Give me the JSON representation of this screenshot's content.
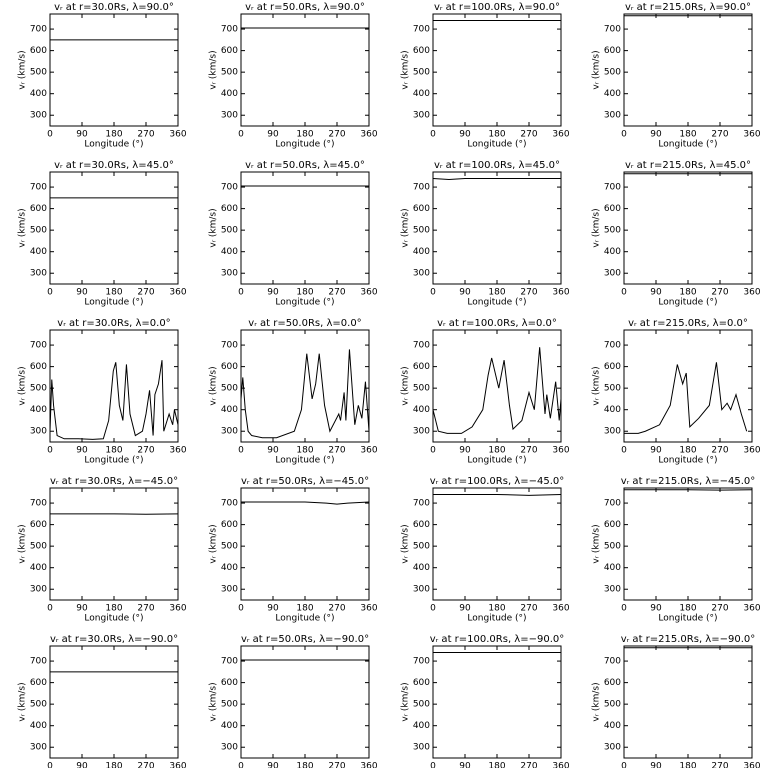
{
  "chart_data": [
    {
      "type": "line",
      "title": "vᵣ at r=30.0Rs, λ=90.0°",
      "xlabel": "Longitude (°)",
      "ylabel": "vᵣ (km/s)",
      "x": [
        0,
        90,
        180,
        270,
        360
      ],
      "values": [
        650,
        650,
        650,
        650,
        650
      ],
      "color": "#000000",
      "xlim": [
        0,
        360
      ],
      "ylim": [
        250,
        770
      ],
      "xticks": [
        0,
        90,
        180,
        270,
        360
      ],
      "yticks": [
        300,
        400,
        500,
        600,
        700
      ]
    },
    {
      "type": "line",
      "title": "vᵣ at r=50.0Rs, λ=90.0°",
      "xlabel": "Longitude (°)",
      "ylabel": "vᵣ (km/s)",
      "x": [
        0,
        90,
        180,
        270,
        360
      ],
      "values": [
        705,
        705,
        705,
        705,
        705
      ],
      "color": "#000000",
      "xlim": [
        0,
        360
      ],
      "ylim": [
        250,
        770
      ],
      "xticks": [
        0,
        90,
        180,
        270,
        360
      ],
      "yticks": [
        300,
        400,
        500,
        600,
        700
      ]
    },
    {
      "type": "line",
      "title": "vᵣ at r=100.0Rs, λ=90.0°",
      "xlabel": "Longitude (°)",
      "ylabel": "vᵣ (km/s)",
      "x": [
        0,
        90,
        180,
        270,
        360
      ],
      "values": [
        740,
        740,
        740,
        740,
        740
      ],
      "color": "#000000",
      "xlim": [
        0,
        360
      ],
      "ylim": [
        250,
        770
      ],
      "xticks": [
        0,
        90,
        180,
        270,
        360
      ],
      "yticks": [
        300,
        400,
        500,
        600,
        700
      ]
    },
    {
      "type": "line",
      "title": "vᵣ at r=215.0Rs, λ=90.0°",
      "xlabel": "Longitude (°)",
      "ylabel": "vᵣ (km/s)",
      "x": [
        0,
        90,
        180,
        270,
        360
      ],
      "values": [
        762,
        762,
        762,
        762,
        762
      ],
      "color": "#000000",
      "xlim": [
        0,
        360
      ],
      "ylim": [
        250,
        770
      ],
      "xticks": [
        0,
        90,
        180,
        270,
        360
      ],
      "yticks": [
        300,
        400,
        500,
        600,
        700
      ]
    },
    {
      "type": "line",
      "title": "vᵣ at r=30.0Rs, λ=45.0°",
      "xlabel": "Longitude (°)",
      "ylabel": "vᵣ (km/s)",
      "x": [
        0,
        90,
        180,
        270,
        360
      ],
      "values": [
        650,
        650,
        650,
        650,
        650
      ],
      "color": "#000000",
      "xlim": [
        0,
        360
      ],
      "ylim": [
        250,
        770
      ],
      "xticks": [
        0,
        90,
        180,
        270,
        360
      ],
      "yticks": [
        300,
        400,
        500,
        600,
        700
      ]
    },
    {
      "type": "line",
      "title": "vᵣ at r=50.0Rs, λ=45.0°",
      "xlabel": "Longitude (°)",
      "ylabel": "vᵣ (km/s)",
      "x": [
        0,
        90,
        180,
        270,
        360
      ],
      "values": [
        705,
        705,
        705,
        705,
        705
      ],
      "color": "#000000",
      "xlim": [
        0,
        360
      ],
      "ylim": [
        250,
        770
      ],
      "xticks": [
        0,
        90,
        180,
        270,
        360
      ],
      "yticks": [
        300,
        400,
        500,
        600,
        700
      ]
    },
    {
      "type": "line",
      "title": "vᵣ at r=100.0Rs, λ=45.0°",
      "xlabel": "Longitude (°)",
      "ylabel": "vᵣ (km/s)",
      "x": [
        0,
        45,
        90,
        180,
        270,
        360
      ],
      "values": [
        740,
        735,
        740,
        740,
        740,
        740
      ],
      "color": "#000000",
      "xlim": [
        0,
        360
      ],
      "ylim": [
        250,
        770
      ],
      "xticks": [
        0,
        90,
        180,
        270,
        360
      ],
      "yticks": [
        300,
        400,
        500,
        600,
        700
      ]
    },
    {
      "type": "line",
      "title": "vᵣ at r=215.0Rs, λ=45.0°",
      "xlabel": "Longitude (°)",
      "ylabel": "vᵣ (km/s)",
      "x": [
        0,
        90,
        180,
        270,
        360
      ],
      "values": [
        762,
        762,
        762,
        762,
        762
      ],
      "color": "#000000",
      "xlim": [
        0,
        360
      ],
      "ylim": [
        250,
        770
      ],
      "xticks": [
        0,
        90,
        180,
        270,
        360
      ],
      "yticks": [
        300,
        400,
        500,
        600,
        700
      ]
    },
    {
      "type": "line",
      "title": "vᵣ at r=30.0Rs, λ=0.0°",
      "xlabel": "Longitude (°)",
      "ylabel": "vᵣ (km/s)",
      "x": [
        0,
        5,
        10,
        20,
        40,
        80,
        120,
        150,
        165,
        178,
        185,
        195,
        205,
        215,
        225,
        240,
        260,
        270,
        280,
        290,
        295,
        305,
        315,
        320,
        335,
        345,
        350,
        360
      ],
      "values": [
        300,
        540,
        420,
        280,
        265,
        265,
        262,
        265,
        350,
        580,
        620,
        420,
        350,
        610,
        380,
        280,
        300,
        380,
        490,
        280,
        470,
        520,
        630,
        300,
        380,
        330,
        400,
        330
      ],
      "color": "#000000",
      "xlim": [
        0,
        360
      ],
      "ylim": [
        250,
        770
      ],
      "xticks": [
        0,
        90,
        180,
        270,
        360
      ],
      "yticks": [
        300,
        400,
        500,
        600,
        700
      ]
    },
    {
      "type": "line",
      "title": "vᵣ at r=50.0Rs, λ=0.0°",
      "xlabel": "Longitude (°)",
      "ylabel": "vᵣ (km/s)",
      "x": [
        0,
        5,
        12,
        20,
        30,
        60,
        100,
        150,
        170,
        185,
        200,
        210,
        220,
        235,
        250,
        275,
        280,
        290,
        295,
        305,
        320,
        330,
        340,
        350,
        360
      ],
      "values": [
        450,
        550,
        400,
        300,
        280,
        270,
        270,
        300,
        400,
        660,
        450,
        520,
        660,
        420,
        300,
        380,
        350,
        480,
        350,
        680,
        330,
        420,
        360,
        530,
        300
      ],
      "color": "#000000",
      "xlim": [
        0,
        360
      ],
      "ylim": [
        250,
        770
      ],
      "xticks": [
        0,
        90,
        180,
        270,
        360
      ],
      "yticks": [
        300,
        400,
        500,
        600,
        700
      ]
    },
    {
      "type": "line",
      "title": "vᵣ at r=100.0Rs, λ=0.0°",
      "xlabel": "Longitude (°)",
      "ylabel": "vᵣ (km/s)",
      "x": [
        0,
        15,
        40,
        80,
        110,
        140,
        155,
        165,
        185,
        200,
        215,
        225,
        250,
        270,
        285,
        300,
        315,
        320,
        330,
        345,
        355,
        360
      ],
      "values": [
        400,
        300,
        290,
        290,
        320,
        400,
        560,
        640,
        500,
        630,
        420,
        310,
        350,
        480,
        400,
        690,
        380,
        470,
        360,
        530,
        350,
        450
      ],
      "color": "#000000",
      "xlim": [
        0,
        360
      ],
      "ylim": [
        250,
        770
      ],
      "xticks": [
        0,
        90,
        180,
        270,
        360
      ],
      "yticks": [
        300,
        400,
        500,
        600,
        700
      ]
    },
    {
      "type": "line",
      "title": "vᵣ at r=215.0Rs, λ=0.0°",
      "xlabel": "Longitude (°)",
      "ylabel": "vᵣ (km/s)",
      "x": [
        0,
        40,
        60,
        100,
        130,
        150,
        165,
        175,
        185,
        210,
        240,
        260,
        275,
        290,
        300,
        315,
        330,
        345
      ],
      "values": [
        290,
        290,
        300,
        330,
        420,
        610,
        520,
        570,
        320,
        360,
        420,
        620,
        400,
        430,
        400,
        470,
        380,
        300
      ],
      "color": "#000000",
      "xlim": [
        0,
        360
      ],
      "ylim": [
        250,
        770
      ],
      "xticks": [
        0,
        90,
        180,
        270,
        360
      ],
      "yticks": [
        300,
        400,
        500,
        600,
        700
      ]
    },
    {
      "type": "line",
      "title": "vᵣ at r=30.0Rs, λ=−45.0°",
      "xlabel": "Longitude (°)",
      "ylabel": "vᵣ (km/s)",
      "x": [
        0,
        90,
        180,
        270,
        360
      ],
      "values": [
        650,
        650,
        650,
        648,
        650
      ],
      "color": "#000000",
      "xlim": [
        0,
        360
      ],
      "ylim": [
        250,
        770
      ],
      "xticks": [
        0,
        90,
        180,
        270,
        360
      ],
      "yticks": [
        300,
        400,
        500,
        600,
        700
      ]
    },
    {
      "type": "line",
      "title": "vᵣ at r=50.0Rs, λ=−45.0°",
      "xlabel": "Longitude (°)",
      "ylabel": "vᵣ (km/s)",
      "x": [
        0,
        90,
        180,
        240,
        270,
        300,
        360
      ],
      "values": [
        705,
        705,
        705,
        700,
        695,
        700,
        705
      ],
      "color": "#000000",
      "xlim": [
        0,
        360
      ],
      "ylim": [
        250,
        770
      ],
      "xticks": [
        0,
        90,
        180,
        270,
        360
      ],
      "yticks": [
        300,
        400,
        500,
        600,
        700
      ]
    },
    {
      "type": "line",
      "title": "vᵣ at r=100.0Rs, λ=−45.0°",
      "xlabel": "Longitude (°)",
      "ylabel": "vᵣ (km/s)",
      "x": [
        0,
        90,
        180,
        270,
        360
      ],
      "values": [
        740,
        740,
        740,
        736,
        740
      ],
      "color": "#000000",
      "xlim": [
        0,
        360
      ],
      "ylim": [
        250,
        770
      ],
      "xticks": [
        0,
        90,
        180,
        270,
        360
      ],
      "yticks": [
        300,
        400,
        500,
        600,
        700
      ]
    },
    {
      "type": "line",
      "title": "vᵣ at r=215.0Rs, λ=−45.0°",
      "xlabel": "Longitude (°)",
      "ylabel": "vᵣ (km/s)",
      "x": [
        0,
        90,
        180,
        270,
        360
      ],
      "values": [
        762,
        762,
        762,
        760,
        762
      ],
      "color": "#000000",
      "xlim": [
        0,
        360
      ],
      "ylim": [
        250,
        770
      ],
      "xticks": [
        0,
        90,
        180,
        270,
        360
      ],
      "yticks": [
        300,
        400,
        500,
        600,
        700
      ]
    },
    {
      "type": "line",
      "title": "vᵣ at r=30.0Rs, λ=−90.0°",
      "xlabel": "Longitude (°)",
      "ylabel": "vᵣ (km/s)",
      "x": [
        0,
        90,
        180,
        270,
        360
      ],
      "values": [
        650,
        650,
        650,
        650,
        650
      ],
      "color": "#000000",
      "xlim": [
        0,
        360
      ],
      "ylim": [
        250,
        770
      ],
      "xticks": [
        0,
        90,
        180,
        270,
        360
      ],
      "yticks": [
        300,
        400,
        500,
        600,
        700
      ]
    },
    {
      "type": "line",
      "title": "vᵣ at r=50.0Rs, λ=−90.0°",
      "xlabel": "Longitude (°)",
      "ylabel": "vᵣ (km/s)",
      "x": [
        0,
        90,
        180,
        270,
        360
      ],
      "values": [
        705,
        705,
        705,
        705,
        705
      ],
      "color": "#000000",
      "xlim": [
        0,
        360
      ],
      "ylim": [
        250,
        770
      ],
      "xticks": [
        0,
        90,
        180,
        270,
        360
      ],
      "yticks": [
        300,
        400,
        500,
        600,
        700
      ]
    },
    {
      "type": "line",
      "title": "vᵣ at r=100.0Rs, λ=−90.0°",
      "xlabel": "Longitude (°)",
      "ylabel": "vᵣ (km/s)",
      "x": [
        0,
        90,
        180,
        270,
        360
      ],
      "values": [
        740,
        740,
        740,
        740,
        740
      ],
      "color": "#000000",
      "xlim": [
        0,
        360
      ],
      "ylim": [
        250,
        770
      ],
      "xticks": [
        0,
        90,
        180,
        270,
        360
      ],
      "yticks": [
        300,
        400,
        500,
        600,
        700
      ]
    },
    {
      "type": "line",
      "title": "vᵣ at r=215.0Rs, λ=−90.0°",
      "xlabel": "Longitude (°)",
      "ylabel": "vᵣ (km/s)",
      "x": [
        0,
        90,
        180,
        270,
        360
      ],
      "values": [
        762,
        762,
        762,
        762,
        762
      ],
      "color": "#000000",
      "xlim": [
        0,
        360
      ],
      "ylim": [
        250,
        770
      ],
      "xticks": [
        0,
        90,
        180,
        270,
        360
      ],
      "yticks": [
        300,
        400,
        500,
        600,
        700
      ]
    }
  ]
}
